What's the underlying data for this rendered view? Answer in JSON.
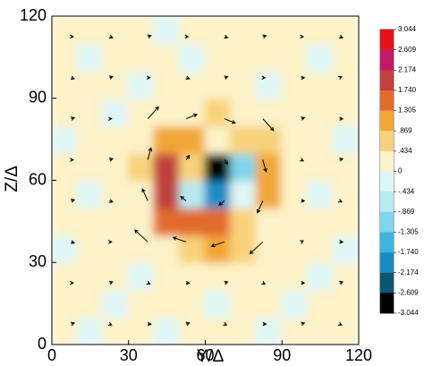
{
  "chart_data": {
    "type": "contour",
    "xlabel": "Y/Δ",
    "ylabel": "Z/Δ",
    "xlim": [
      0,
      120
    ],
    "ylim": [
      0,
      120
    ],
    "xticks": [
      0,
      30,
      60,
      90,
      120
    ],
    "yticks": [
      0,
      30,
      60,
      90,
      120
    ],
    "x": [
      5,
      15,
      25,
      35,
      45,
      55,
      65,
      75,
      85,
      95,
      105,
      115
    ],
    "y": [
      5,
      15,
      25,
      35,
      45,
      55,
      65,
      75,
      85,
      95,
      105,
      115
    ],
    "z": [
      [
        0.2,
        -0.3,
        0.2,
        0.1,
        -0.2,
        0.2,
        0.1,
        0.2,
        -0.3,
        0.2,
        0.1,
        0.2
      ],
      [
        0.1,
        0.2,
        -0.2,
        0.2,
        0.1,
        0.2,
        -0.3,
        0.1,
        0.2,
        -0.2,
        0.2,
        0.1
      ],
      [
        0.2,
        0.1,
        0.2,
        -0.3,
        0.2,
        0.1,
        0.2,
        0.3,
        0.1,
        0.2,
        -0.2,
        0.2
      ],
      [
        -0.2,
        0.2,
        0.1,
        0.2,
        0.3,
        0.5,
        0.9,
        0.6,
        0.2,
        0.1,
        0.2,
        -0.3
      ],
      [
        0.2,
        0.1,
        0.2,
        0.3,
        1.5,
        1.6,
        1.4,
        0.8,
        0.4,
        0.2,
        0.1,
        0.2
      ],
      [
        0.1,
        -0.2,
        0.2,
        0.4,
        1.9,
        -0.5,
        -1.8,
        -0.3,
        1.1,
        0.2,
        -0.2,
        0.1
      ],
      [
        0.2,
        0.1,
        0.2,
        0.5,
        2.0,
        0.6,
        -2.8,
        -1.0,
        0.9,
        0.2,
        0.1,
        0.2
      ],
      [
        -0.3,
        0.2,
        0.1,
        0.2,
        0.9,
        1.2,
        0.3,
        0.8,
        0.5,
        0.1,
        0.2,
        -0.2
      ],
      [
        0.2,
        0.1,
        -0.2,
        0.2,
        0.2,
        0.4,
        0.5,
        0.3,
        0.2,
        0.2,
        0.1,
        0.2
      ],
      [
        0.1,
        0.2,
        0.1,
        -0.3,
        0.2,
        0.1,
        0.2,
        0.1,
        -0.2,
        0.2,
        0.2,
        0.1
      ],
      [
        0.2,
        -0.2,
        0.2,
        0.1,
        0.2,
        -0.3,
        0.1,
        0.2,
        0.1,
        0.2,
        -0.3,
        0.2
      ],
      [
        0.1,
        0.2,
        0.1,
        0.2,
        -0.2,
        0.2,
        0.2,
        0.1,
        0.2,
        0.1,
        0.2,
        0.1
      ]
    ],
    "vectors": {
      "x": [
        7.5,
        22.5,
        37.5,
        52.5,
        67.5,
        82.5,
        97.5,
        112.5
      ],
      "y": [
        7.5,
        22.5,
        37.5,
        52.5,
        67.5,
        82.5,
        97.5,
        112.5
      ],
      "u": [
        [
          0.3,
          0.2,
          0.3,
          0.3,
          0.2,
          0.3,
          0.3,
          0.2
        ],
        [
          0.2,
          0.3,
          0.2,
          0.3,
          0.3,
          0.2,
          0.3,
          0.3
        ],
        [
          0.3,
          0.2,
          -1.2,
          -1.2,
          -1.2,
          -1.2,
          0.2,
          0.3
        ],
        [
          0.3,
          0.3,
          -0.5,
          -0.5,
          -0.5,
          -0.5,
          0.3,
          0.2
        ],
        [
          0.2,
          0.3,
          0.3,
          0.3,
          0.3,
          0.3,
          0.2,
          0.3
        ],
        [
          0.3,
          0.2,
          1.0,
          1.0,
          1.0,
          1.0,
          0.3,
          0.3
        ],
        [
          0.3,
          0.3,
          0.2,
          0.3,
          0.3,
          0.2,
          0.3,
          0.2
        ],
        [
          0.2,
          0.3,
          0.3,
          0.2,
          0.3,
          0.3,
          0.2,
          0.3
        ]
      ],
      "v": [
        [
          0.1,
          -0.1,
          0,
          0.1,
          -0.1,
          0,
          0.1,
          -0.1
        ],
        [
          0,
          0.1,
          -0.1,
          0,
          0.1,
          -0.1,
          0,
          0.1
        ],
        [
          -0.1,
          0,
          1.1,
          0.4,
          -0.4,
          -1.1,
          0.1,
          0
        ],
        [
          0.1,
          -0.1,
          1.1,
          0.4,
          -0.4,
          -1.1,
          0,
          -0.1
        ],
        [
          0,
          0.1,
          1.1,
          0.4,
          -0.4,
          -1.1,
          -0.1,
          0.1
        ],
        [
          0.1,
          0,
          1.1,
          0.4,
          -0.4,
          -1.1,
          0.1,
          0
        ],
        [
          -0.1,
          0.1,
          0,
          -0.1,
          0.1,
          0,
          0,
          0.1
        ],
        [
          0,
          -0.1,
          0.1,
          0,
          -0.1,
          0.1,
          0,
          -0.1
        ]
      ],
      "color": "#000000"
    },
    "levels": [
      3.044,
      2.609,
      2.174,
      {
        "value": 1.74,
        "label": "1.740"
      },
      1.305,
      {
        "value": 0.869,
        "label": ".869"
      },
      {
        "value": 0.434,
        "label": ".434"
      },
      0,
      {
        "value": -0.434,
        "label": "-.434"
      },
      {
        "value": -0.869,
        "label": "-.869"
      },
      -1.305,
      {
        "value": -1.74,
        "label": "-1.740"
      },
      -2.174,
      -2.609,
      -3.044
    ],
    "colors": [
      "#e8101a",
      "#c2186a",
      "#c04040",
      "#e26a2a",
      "#f2a634",
      "#f8d27a",
      "#fdf2c8",
      "#def6f6",
      "#b6eaf0",
      "#7ed6e8",
      "#3cb6de",
      "#1a8cc4",
      "#0c5670",
      "#000000"
    ]
  }
}
